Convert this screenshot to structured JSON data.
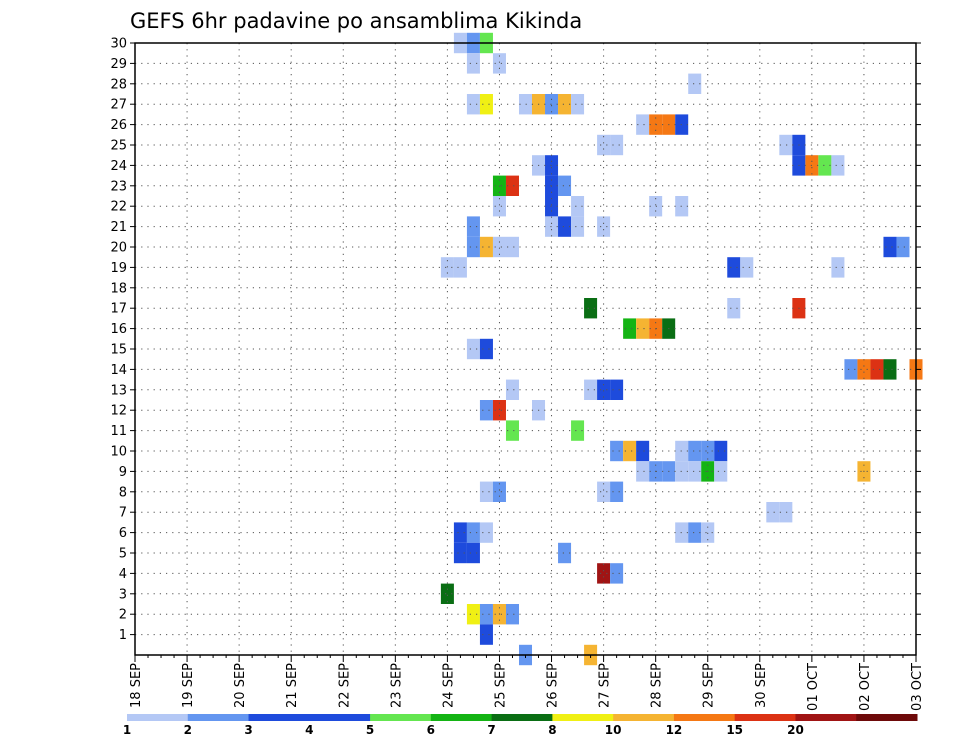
{
  "chart_data": {
    "type": "heatmap",
    "title": "GEFS 6hr padavine po ansamblima Kikinda",
    "x_tick_labels": [
      "18 SEP",
      "19 SEP",
      "20 SEP",
      "21 SEP",
      "22 SEP",
      "23 SEP",
      "24 SEP",
      "25 SEP",
      "26 SEP",
      "27 SEP",
      "28 SEP",
      "29 SEP",
      "30 SEP",
      "01 OCT",
      "02 OCT",
      "03 OCT"
    ],
    "y_tick_labels": [
      "1",
      "2",
      "3",
      "4",
      "5",
      "6",
      "7",
      "8",
      "9",
      "10",
      "11",
      "12",
      "13",
      "14",
      "15",
      "16",
      "17",
      "18",
      "19",
      "20",
      "21",
      "22",
      "23",
      "24",
      "25",
      "26",
      "27",
      "28",
      "29",
      "30"
    ],
    "x_range_steps": [
      0,
      60
    ],
    "y_range": [
      0,
      30
    ],
    "grid": true,
    "legend_position": "bottom",
    "colorbar": {
      "thresholds": [
        "1",
        "2",
        "3",
        "4",
        "5",
        "6",
        "7",
        "8",
        "10",
        "12",
        "15",
        "20"
      ],
      "colors": [
        "#b4c8f5",
        "#6496f0",
        "#1e4bdc",
        "#1e4bdc",
        "#64e650",
        "#14b414",
        "#0a6e14",
        "#f0f014",
        "#f5b432",
        "#f57814",
        "#dc3214",
        "#a01414",
        "#6e0a0a"
      ]
    },
    "cells_note": "each cell = [ensemble member, 6h step from 18 SEP 00Z, color class index]",
    "cells": [
      [
        30,
        25,
        0
      ],
      [
        30,
        26,
        1
      ],
      [
        30,
        27,
        4
      ],
      [
        29,
        26,
        0
      ],
      [
        29,
        28,
        0
      ],
      [
        28,
        43,
        0
      ],
      [
        27,
        26,
        0
      ],
      [
        27,
        27,
        7
      ],
      [
        27,
        30,
        0
      ],
      [
        27,
        31,
        8
      ],
      [
        27,
        32,
        1
      ],
      [
        27,
        33,
        8
      ],
      [
        27,
        34,
        0
      ],
      [
        26,
        39,
        0
      ],
      [
        26,
        40,
        9
      ],
      [
        26,
        41,
        9
      ],
      [
        26,
        42,
        2
      ],
      [
        25,
        36,
        0
      ],
      [
        25,
        37,
        0
      ],
      [
        25,
        50,
        0
      ],
      [
        25,
        51,
        2
      ],
      [
        24,
        31,
        0
      ],
      [
        24,
        32,
        2
      ],
      [
        24,
        51,
        2
      ],
      [
        24,
        52,
        9
      ],
      [
        24,
        53,
        4
      ],
      [
        24,
        54,
        0
      ],
      [
        23,
        28,
        5
      ],
      [
        23,
        29,
        10
      ],
      [
        23,
        32,
        2
      ],
      [
        23,
        33,
        1
      ],
      [
        22,
        28,
        0
      ],
      [
        22,
        32,
        2
      ],
      [
        22,
        34,
        0
      ],
      [
        22,
        40,
        0
      ],
      [
        22,
        42,
        0
      ],
      [
        21,
        26,
        1
      ],
      [
        21,
        32,
        0
      ],
      [
        21,
        33,
        2
      ],
      [
        21,
        34,
        0
      ],
      [
        21,
        36,
        0
      ],
      [
        20,
        26,
        1
      ],
      [
        20,
        27,
        8
      ],
      [
        20,
        28,
        0
      ],
      [
        20,
        29,
        0
      ],
      [
        20,
        58,
        2
      ],
      [
        20,
        59,
        1
      ],
      [
        19,
        24,
        0
      ],
      [
        19,
        25,
        0
      ],
      [
        19,
        46,
        2
      ],
      [
        19,
        47,
        0
      ],
      [
        19,
        54,
        0
      ],
      [
        17,
        35,
        6
      ],
      [
        17,
        46,
        0
      ],
      [
        17,
        51,
        10
      ],
      [
        16,
        38,
        5
      ],
      [
        16,
        39,
        8
      ],
      [
        16,
        40,
        9
      ],
      [
        16,
        41,
        6
      ],
      [
        15,
        26,
        0
      ],
      [
        15,
        27,
        2
      ],
      [
        14,
        55,
        1
      ],
      [
        14,
        56,
        9
      ],
      [
        14,
        57,
        10
      ],
      [
        14,
        58,
        6
      ],
      [
        14,
        60,
        9
      ],
      [
        13,
        29,
        0
      ],
      [
        13,
        35,
        0
      ],
      [
        13,
        36,
        2
      ],
      [
        13,
        37,
        2
      ],
      [
        12,
        27,
        1
      ],
      [
        12,
        28,
        10
      ],
      [
        12,
        31,
        0
      ],
      [
        11,
        29,
        4
      ],
      [
        11,
        34,
        4
      ],
      [
        10,
        37,
        1
      ],
      [
        10,
        38,
        8
      ],
      [
        10,
        39,
        2
      ],
      [
        10,
        42,
        0
      ],
      [
        10,
        43,
        1
      ],
      [
        10,
        44,
        1
      ],
      [
        10,
        45,
        2
      ],
      [
        9,
        39,
        0
      ],
      [
        9,
        40,
        1
      ],
      [
        9,
        41,
        1
      ],
      [
        9,
        42,
        0
      ],
      [
        9,
        43,
        0
      ],
      [
        9,
        44,
        5
      ],
      [
        9,
        45,
        0
      ],
      [
        9,
        56,
        8
      ],
      [
        8,
        27,
        0
      ],
      [
        8,
        28,
        1
      ],
      [
        8,
        36,
        0
      ],
      [
        8,
        37,
        1
      ],
      [
        7,
        49,
        0
      ],
      [
        7,
        50,
        0
      ],
      [
        6,
        25,
        2
      ],
      [
        6,
        26,
        1
      ],
      [
        6,
        27,
        0
      ],
      [
        6,
        42,
        0
      ],
      [
        6,
        43,
        1
      ],
      [
        6,
        44,
        0
      ],
      [
        5,
        25,
        2
      ],
      [
        5,
        26,
        2
      ],
      [
        5,
        33,
        1
      ],
      [
        4,
        36,
        11
      ],
      [
        4,
        37,
        1
      ],
      [
        3,
        24,
        6
      ],
      [
        2,
        26,
        7
      ],
      [
        2,
        27,
        1
      ],
      [
        2,
        28,
        8
      ],
      [
        2,
        29,
        1
      ],
      [
        1,
        27,
        2
      ],
      [
        0,
        30,
        1
      ],
      [
        0,
        35,
        8
      ]
    ]
  }
}
